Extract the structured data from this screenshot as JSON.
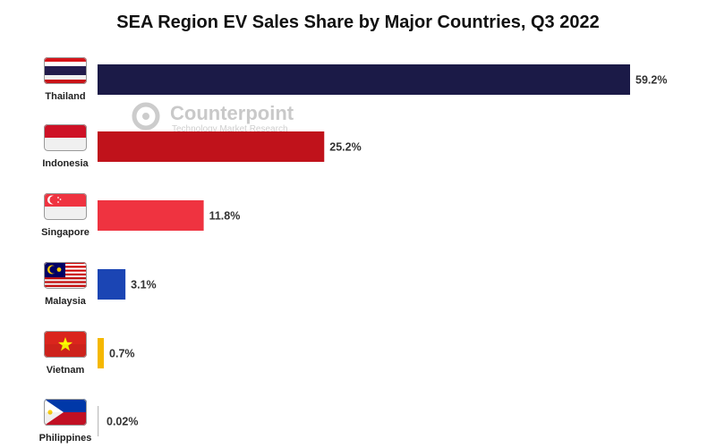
{
  "chart_data": {
    "type": "bar",
    "orientation": "horizontal",
    "title": "SEA Region EV Sales Share by Major Countries, Q3 2022",
    "categories": [
      "Thailand",
      "Indonesia",
      "Singapore",
      "Malaysia",
      "Vietnam",
      "Philippines"
    ],
    "values": [
      59.2,
      25.2,
      11.8,
      3.1,
      0.7,
      0.02
    ],
    "value_labels": [
      "59.2%",
      "25.2%",
      "11.8%",
      "3.1%",
      "0.7%",
      "0.02%"
    ],
    "colors": [
      "#1b1a47",
      "#c0121b",
      "#ef3340",
      "#1b45b4",
      "#f5b800",
      "#bdbdbd"
    ],
    "flag_icons": [
      "thailand-flag-icon",
      "indonesia-flag-icon",
      "singapore-flag-icon",
      "malaysia-flag-icon",
      "vietnam-flag-icon",
      "philippines-flag-icon"
    ],
    "xlim": [
      0,
      59.2
    ],
    "grid": false,
    "legend": "none"
  },
  "watermark": {
    "brand": "Counterpoint",
    "tagline": "Technology Market Research"
  }
}
